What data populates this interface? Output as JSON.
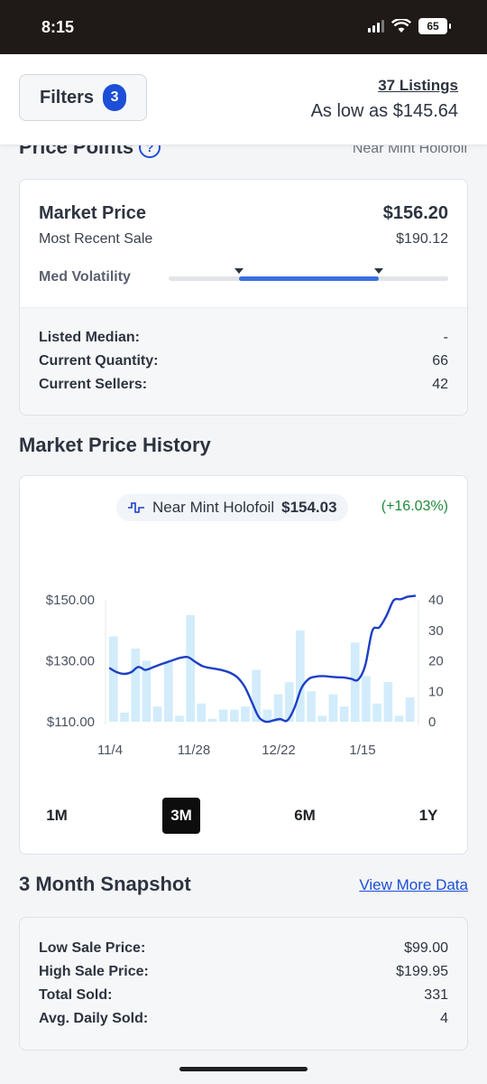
{
  "status_bar": {
    "time": "8:15",
    "battery": "65"
  },
  "header": {
    "filters_label": "Filters",
    "filters_count": "3",
    "listings_link": "37 Listings",
    "as_low_as": "As low as $145.64"
  },
  "price_points": {
    "title": "Price Points",
    "condition": "Near Mint Holofoil"
  },
  "market_card": {
    "market_price_label": "Market Price",
    "market_price_value": "$156.20",
    "recent_sale_label": "Most Recent Sale",
    "recent_sale_value": "$190.12",
    "volatility_label": "Med Volatility",
    "volatility_range": [
      0.25,
      0.75
    ],
    "stats": [
      {
        "label": "Listed Median:",
        "value": "-"
      },
      {
        "label": "Current Quantity:",
        "value": "66"
      },
      {
        "label": "Current Sellers:",
        "value": "42"
      }
    ]
  },
  "history": {
    "title": "Market Price History",
    "legend_name": "Near Mint Holofoil",
    "legend_price": "$154.03",
    "legend_change": "(+16.03%)",
    "ranges": [
      "1M",
      "3M",
      "6M",
      "1Y"
    ],
    "active_range": "3M",
    "colors": {
      "line": "#1d3fc4",
      "bar": "#d2ecfb"
    }
  },
  "chart_data": {
    "type": "line",
    "x_tick_labels": [
      "11/4",
      "11/28",
      "12/22",
      "1/15"
    ],
    "y_left_ticks": [
      "$150.00",
      "$130.00",
      "$110.00"
    ],
    "y_left_range": [
      110,
      150
    ],
    "y_right_ticks": [
      "40",
      "30",
      "20",
      "10",
      "0"
    ],
    "y_right_range": [
      0,
      40
    ],
    "series": [
      {
        "values": [
          127.5,
          126.2,
          125.7,
          126.3,
          128.0,
          127.0,
          127.8,
          128.7,
          129.5,
          130.3,
          131.0,
          131.2,
          129.7,
          128.3,
          127.7,
          127.3,
          126.8,
          126.0,
          124.5,
          121.5,
          116.5,
          111.5,
          110.0,
          110.4,
          110.9,
          110.4,
          114.5,
          121.0,
          124.0,
          124.8,
          125.0,
          124.8,
          124.6,
          124.5,
          124.1,
          123.8,
          128.5,
          139.8,
          141.0,
          144.8,
          149.8,
          150.2,
          151.0,
          151.3
        ]
      }
    ],
    "bars": [
      28,
      3,
      24,
      20,
      5,
      20,
      2,
      35,
      6,
      1,
      4,
      4,
      5,
      17,
      4,
      9,
      13,
      30,
      10,
      2,
      9,
      5,
      26,
      15,
      6,
      13,
      2,
      8
    ]
  },
  "snapshot": {
    "title": "3 Month Snapshot",
    "view_more": "View More Data",
    "stats": [
      {
        "label": "Low Sale Price:",
        "value": "$99.00"
      },
      {
        "label": "High Sale Price:",
        "value": "$199.95"
      },
      {
        "label": "Total Sold:",
        "value": "331"
      },
      {
        "label": "Avg. Daily Sold:",
        "value": "4"
      }
    ]
  }
}
